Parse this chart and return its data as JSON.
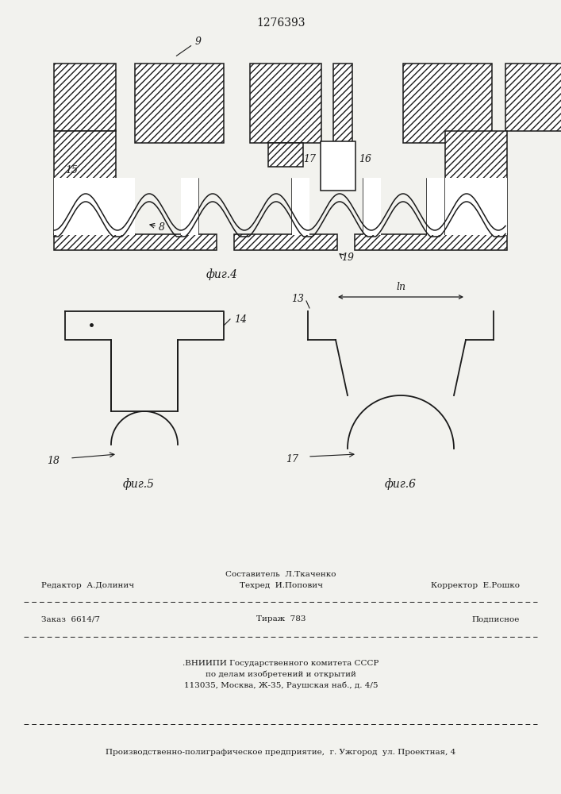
{
  "title": "1276393",
  "fig4_label": "фиг.4",
  "fig5_label": "фиг.5",
  "fig6_label": "фиг.6",
  "label_9": "9",
  "label_15": "15",
  "label_17": "17",
  "label_16": "16",
  "label_8": "8",
  "label_19": "19",
  "label_14": "14",
  "label_18": "18",
  "label_13": "13",
  "label_ln": "lп",
  "label_17b": "17",
  "bg_color": "#f2f2ee",
  "line_color": "#1a1a1a",
  "text_color": "#1a1a1a"
}
